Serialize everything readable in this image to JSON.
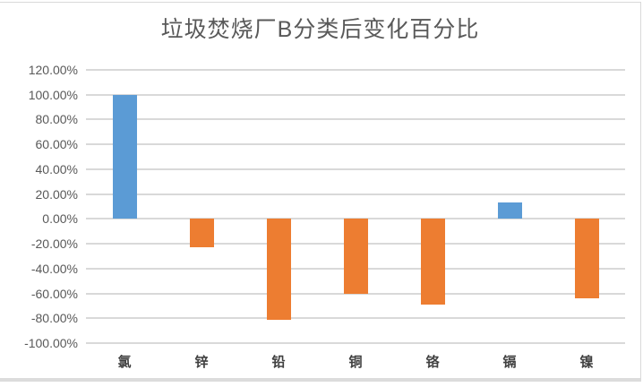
{
  "chart_data": {
    "type": "bar",
    "title": "垃圾焚烧厂B分类后变化百分比",
    "categories": [
      "氯",
      "锌",
      "铅",
      "铜",
      "铬",
      "镉",
      "镍"
    ],
    "values": [
      100,
      -23,
      -81,
      -60,
      -69,
      13,
      -64
    ],
    "value_unit": "%",
    "ylim": [
      -100,
      120
    ],
    "ytick_step": 20,
    "ytick_labels": [
      "120.00%",
      "100.00%",
      "80.00%",
      "60.00%",
      "40.00%",
      "20.00%",
      "0.00%",
      "-20.00%",
      "-40.00%",
      "-60.00%",
      "-80.00%",
      "-100.00%"
    ],
    "grid": true,
    "legend": false,
    "colors": {
      "positive_bar": "#5B9BD5",
      "negative_bar": "#ED7D31",
      "gridline": "#D9D9D9",
      "title_text": "#595959",
      "tick_text": "#595959",
      "category_text": "#404040",
      "card_border": "#D9D9D9"
    }
  }
}
